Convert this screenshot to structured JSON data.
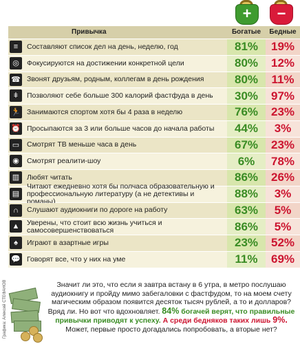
{
  "credit": "Графика: Алексей СТЕФАНОВ",
  "badges": {
    "rich": "+",
    "poor": "−"
  },
  "header": {
    "habit": "Привычка",
    "rich": "Богатые",
    "poor": "Бедные"
  },
  "rows": [
    {
      "icon": "list-icon",
      "glyph": "≡",
      "habit": "Составляют список дел на день, неделю, год",
      "rich": "81%",
      "poor": "19%"
    },
    {
      "icon": "target-icon",
      "glyph": "◎",
      "habit": "Фокусируются на достижении конкретной цели",
      "rich": "80%",
      "poor": "12%"
    },
    {
      "icon": "phone-icon",
      "glyph": "☎",
      "habit": "Звонят друзьям, родным, коллегам в день рождения",
      "rich": "80%",
      "poor": "11%"
    },
    {
      "icon": "fast-food-icon",
      "glyph": "ǂ",
      "habit": "Позволяют себе больше 300 калорий фастфуда в день",
      "rich": "30%",
      "poor": "97%"
    },
    {
      "icon": "runner-icon",
      "glyph": "🏃",
      "habit": "Занимаются спортом хотя бы 4 раза в неделю",
      "rich": "76%",
      "poor": "23%"
    },
    {
      "icon": "alarm-clock-icon",
      "glyph": "⏰",
      "habit": "Просыпаются за 3 или больше часов до начала работы",
      "rich": "44%",
      "poor": "3%"
    },
    {
      "icon": "tv-icon",
      "glyph": "▭",
      "habit": "Смотрят ТВ меньше часа в день",
      "rich": "67%",
      "poor": "23%"
    },
    {
      "icon": "eye-icon",
      "glyph": "◉",
      "habit": "Смотрят реалити-шоу",
      "rich": "6%",
      "poor": "78%"
    },
    {
      "icon": "books-icon",
      "glyph": "▥",
      "habit": "Любят читать",
      "rich": "86%",
      "poor": "26%"
    },
    {
      "icon": "open-book-icon",
      "glyph": "▤",
      "habit": "Читают ежедневно хотя бы полчаса образовательную и профессиональную литературу (а не детективы и романы)",
      "rich": "88%",
      "poor": "3%"
    },
    {
      "icon": "headphones-icon",
      "glyph": "∩",
      "habit": "Слушают аудиокниги по дороге на работу",
      "rich": "63%",
      "poor": "5%"
    },
    {
      "icon": "graduation-cap-icon",
      "glyph": "▲",
      "habit": "Уверены, что стоит всю жизнь учиться и самосовершенствоваться",
      "rich": "86%",
      "poor": "5%"
    },
    {
      "icon": "spade-icon",
      "glyph": "♠",
      "habit": "Играют в азартные игры",
      "rich": "23%",
      "poor": "52%"
    },
    {
      "icon": "speech-bubble-icon",
      "glyph": "💬",
      "habit": "Говорят все, что у них на уме",
      "rich": "11%",
      "poor": "69%"
    }
  ],
  "closing": {
    "p1": "Значит ли это, что если я завтра встану в 6 утра, в метро послушаю аудиокнигу и пройду мимо забегаловки с фастфудом, то на моем счету магическим образом появится десяток тысяч рублей, а то и долларов? Вряд ли. Но вот что вдохновляет.",
    "rich_pct": "84%",
    "rich_text": "богачей верят, что правильные привычки приводят к успеху.",
    "poor_text": "А среди бедняков таких лишь",
    "poor_pct": "9%.",
    "p2": "Может, первые просто догадались попробовать, а вторые нет?"
  }
}
